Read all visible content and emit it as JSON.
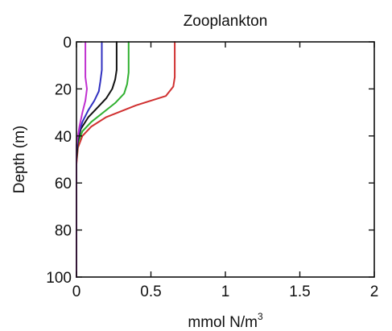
{
  "chart_data": {
    "type": "line",
    "title": "Zooplankton",
    "xlabel": "mmol N/m",
    "xlabel_superscript": "3",
    "ylabel": "Depth (m)",
    "xlim": [
      0,
      2
    ],
    "ylim": [
      0,
      100
    ],
    "y_inverted": true,
    "grid": false,
    "xticks": [
      0,
      0.5,
      1,
      1.5,
      2
    ],
    "xtick_labels": [
      "0",
      "0.5",
      "1",
      "1.5",
      "2"
    ],
    "yticks": [
      0,
      20,
      40,
      60,
      80,
      100
    ],
    "ytick_labels": [
      "0",
      "20",
      "40",
      "60",
      "80",
      "100"
    ],
    "series": [
      {
        "color": "#d03030",
        "x": [
          0.66,
          0.66,
          0.65,
          0.6,
          0.4,
          0.2,
          0.1,
          0.04,
          0.01,
          0.0,
          0.0,
          0.0
        ],
        "y": [
          0,
          15,
          19,
          23,
          27,
          32,
          36,
          40,
          45,
          52,
          70,
          100
        ]
      },
      {
        "color": "#30b030",
        "x": [
          0.35,
          0.35,
          0.34,
          0.32,
          0.26,
          0.18,
          0.1,
          0.04,
          0.01,
          0.0,
          0.0,
          0.0
        ],
        "y": [
          0,
          13,
          18,
          22,
          26,
          30,
          34,
          38,
          43,
          50,
          70,
          100
        ]
      },
      {
        "color": "#111111",
        "x": [
          0.27,
          0.27,
          0.26,
          0.24,
          0.2,
          0.14,
          0.08,
          0.03,
          0.01,
          0.0,
          0.0,
          0.0
        ],
        "y": [
          0,
          12,
          16,
          20,
          24,
          28,
          32,
          37,
          42,
          50,
          70,
          100
        ]
      },
      {
        "color": "#3030c0",
        "x": [
          0.17,
          0.17,
          0.16,
          0.15,
          0.12,
          0.08,
          0.04,
          0.01,
          0.0,
          0.0,
          0.0
        ],
        "y": [
          0,
          12,
          17,
          21,
          25,
          29,
          34,
          40,
          46,
          70,
          100
        ]
      },
      {
        "color": "#c030d0",
        "x": [
          0.06,
          0.06,
          0.06,
          0.07,
          0.06,
          0.04,
          0.02,
          0.0,
          0.0,
          0.0
        ],
        "y": [
          0,
          10,
          15,
          20,
          25,
          30,
          36,
          44,
          70,
          100
        ]
      }
    ]
  }
}
